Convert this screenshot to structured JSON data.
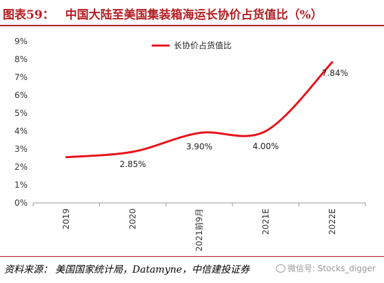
{
  "header": {
    "figure_no": "图表59：",
    "title": "中国大陆至美国集装箱海运长协价占货值比（%）"
  },
  "footer": {
    "source_label": "资料来源：",
    "source_text": "美国国家统计局，Datamyne，中信建投证券"
  },
  "watermark": {
    "text": "微信号: Stocks_digger",
    "icon": "wechat-icon"
  },
  "chart_data": {
    "type": "line",
    "categories": [
      "2019",
      "2020",
      "2021前9月",
      "2021E",
      "2022E"
    ],
    "series": [
      {
        "name": "长协价占货值比",
        "values": [
          2.55,
          2.85,
          3.9,
          4.0,
          7.84
        ],
        "data_labels": [
          "",
          "2.85%",
          "3.90%",
          "4.00%",
          "7.84%"
        ],
        "color": "#e8131b"
      }
    ],
    "y_ticks": [
      "0%",
      "1%",
      "2%",
      "3%",
      "4%",
      "5%",
      "6%",
      "7%",
      "8%",
      "9%"
    ],
    "ylim": [
      0,
      9
    ],
    "legend": "top-center",
    "grid": false
  }
}
